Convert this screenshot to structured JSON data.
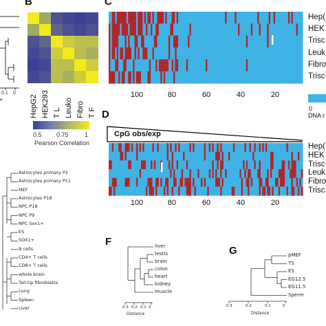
{
  "panels": {
    "B": {
      "letter": "B"
    },
    "C": {
      "letter": "C"
    },
    "D": {
      "letter": "D"
    },
    "F": {
      "letter": "F"
    },
    "G": {
      "letter": "G"
    }
  },
  "chart_data": [
    {
      "type": "heatmap",
      "panel": "B",
      "row_labels": [
        "HepG2",
        "HEK293",
        "T L",
        "Leuko",
        "Fibro",
        "T F"
      ],
      "col_labels": [
        "HepG2",
        "HEK293",
        "T L",
        "Leuko",
        "Fibro",
        "T F"
      ],
      "values": [
        [
          1.0,
          0.78,
          0.55,
          0.52,
          0.5,
          0.52
        ],
        [
          0.78,
          1.0,
          0.6,
          0.55,
          0.52,
          0.55
        ],
        [
          0.55,
          0.6,
          1.0,
          0.9,
          0.85,
          0.85
        ],
        [
          0.52,
          0.55,
          0.9,
          1.0,
          0.85,
          0.8
        ],
        [
          0.5,
          0.52,
          0.85,
          0.85,
          1.0,
          0.9
        ],
        [
          0.52,
          0.55,
          0.85,
          0.8,
          0.9,
          1.0
        ]
      ],
      "colorbar": {
        "ticks": [
          "0.5",
          "0.75",
          "1"
        ],
        "label": "Pearson Correlation"
      }
    },
    {
      "type": "heatmap",
      "panel": "C",
      "row_labels": [
        "Hep(",
        "HEK",
        "Trisc",
        "Leuk",
        "Fibro",
        "Trisc"
      ],
      "x_ticks": [
        "100",
        "80",
        "60",
        "40",
        "20"
      ],
      "colorbar": {
        "tick": "0",
        "label": "DNA r"
      }
    },
    {
      "type": "heatmap",
      "panel": "D",
      "banner": "CpG obs/exp",
      "row_labels": [
        "Hep(",
        "HEK",
        "Trisc",
        "Leuk",
        "Fibro",
        "Trisc"
      ],
      "x_ticks": [
        "100",
        "80",
        "60",
        "40",
        "20"
      ]
    }
  ],
  "dendrogram_A": {
    "tick_labels": [
      "0.1",
      "0"
    ],
    "leaves": [
      "Astrocytes primary P2",
      "Astrocytes primary P11",
      "MEF",
      "Astrocytes P18",
      "NPC P18",
      "NPC P9",
      "NPC Sox1+",
      "ES",
      "SOX1+",
      "B cells",
      "CD4+ T cells",
      "CD8+ T cells",
      "whole brain",
      "Tail-tip fibroblasts",
      "Lung",
      "Spleen",
      "Liver"
    ]
  },
  "dendrogram_F": {
    "leaves": [
      "liver",
      "testis",
      "brain",
      "colon",
      "heart",
      "kidney",
      "muscle"
    ],
    "ticks": [
      "0.3",
      "0.2",
      "0.1",
      "0"
    ],
    "axis_label": "Distance"
  },
  "dendrogram_G": {
    "leaves": [
      "pMEF",
      "TS",
      "ES",
      "EG12.5",
      "EG11.5",
      "Sperm"
    ],
    "ticks": [
      "0.3",
      "0.2",
      "0.1",
      "0"
    ],
    "axis_label": "Distance"
  },
  "colors": {
    "red": "#b2262a",
    "blue": "#3fb3e6",
    "navy": "#3b3f99",
    "yellow": "#f2ea1a"
  }
}
